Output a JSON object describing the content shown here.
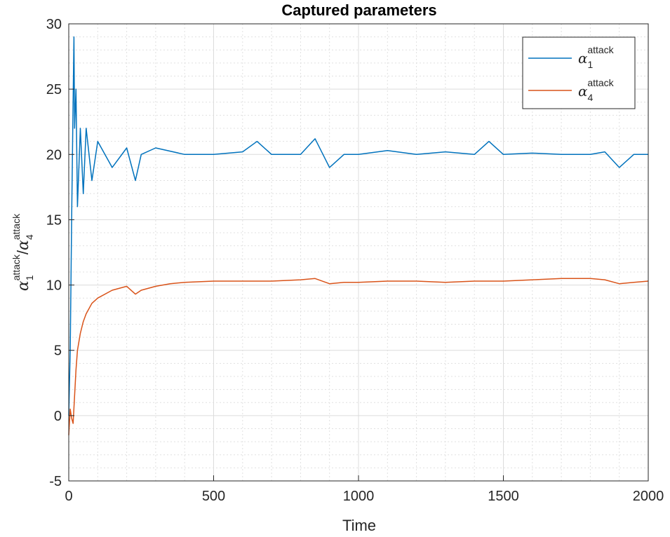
{
  "chart_data": {
    "type": "line",
    "title": "Captured parameters",
    "xlabel": "Time",
    "ylabel": {
      "symbol1": "α",
      "sub1": "1",
      "sup1": "attack",
      "separator": "/",
      "symbol2": "α",
      "sub2": "4",
      "sup2": "attack"
    },
    "xlim": [
      0,
      2000
    ],
    "ylim": [
      -5,
      30
    ],
    "xticks": [
      0,
      500,
      1000,
      1500,
      2000
    ],
    "yticks": [
      -5,
      0,
      5,
      10,
      15,
      20,
      25,
      30
    ],
    "xtick_labels": [
      "0",
      "500",
      "1000",
      "1500",
      "2000"
    ],
    "ytick_labels": [
      "-5",
      "0",
      "5",
      "10",
      "15",
      "20",
      "25",
      "30"
    ],
    "grid": true,
    "minor_grid": true,
    "legend_position": "top-right",
    "series": [
      {
        "name": "α1 attack",
        "label_symbol": "α",
        "label_sub": "1",
        "label_sup": "attack",
        "color": "#0072BD",
        "x": [
          0,
          5,
          10,
          15,
          18,
          20,
          25,
          30,
          40,
          50,
          60,
          80,
          100,
          150,
          200,
          230,
          250,
          300,
          400,
          500,
          600,
          650,
          700,
          800,
          850,
          900,
          950,
          1000,
          1100,
          1200,
          1300,
          1400,
          1450,
          1500,
          1600,
          1700,
          1800,
          1850,
          1900,
          1950,
          2000
        ],
        "y": [
          0,
          5,
          15,
          24,
          29,
          22,
          25,
          16,
          22,
          17,
          22,
          18,
          21,
          19,
          20.5,
          18,
          20,
          20.5,
          20,
          20,
          20.2,
          21,
          20,
          20,
          21.2,
          19,
          20,
          20,
          20.3,
          20,
          20.2,
          20,
          21,
          20,
          20.1,
          20,
          20,
          20.2,
          19,
          20,
          20
        ]
      },
      {
        "name": "α4 attack",
        "label_symbol": "α",
        "label_sub": "4",
        "label_sup": "attack",
        "color": "#D95319",
        "x": [
          0,
          5,
          10,
          15,
          20,
          25,
          30,
          40,
          50,
          60,
          80,
          100,
          150,
          200,
          230,
          250,
          300,
          350,
          400,
          500,
          600,
          700,
          800,
          850,
          900,
          950,
          1000,
          1100,
          1200,
          1300,
          1400,
          1500,
          1600,
          1700,
          1800,
          1850,
          1900,
          1950,
          2000
        ],
        "y": [
          -1.5,
          0.5,
          -0.2,
          -0.6,
          1.5,
          3.5,
          5,
          6.3,
          7.2,
          7.8,
          8.6,
          9,
          9.6,
          9.9,
          9.3,
          9.6,
          9.9,
          10.1,
          10.2,
          10.3,
          10.3,
          10.3,
          10.4,
          10.5,
          10.1,
          10.2,
          10.2,
          10.3,
          10.3,
          10.2,
          10.3,
          10.3,
          10.4,
          10.5,
          10.5,
          10.4,
          10.1,
          10.2,
          10.3
        ]
      }
    ]
  }
}
